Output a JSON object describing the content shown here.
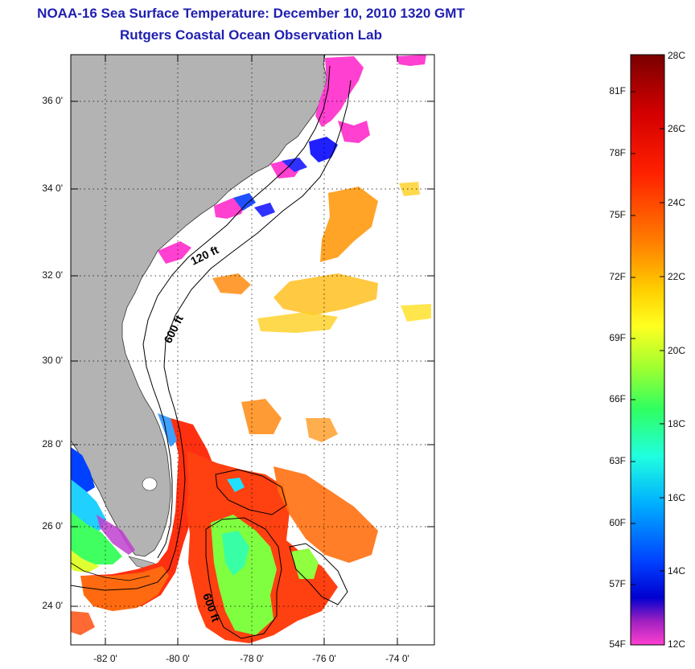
{
  "header": {
    "title": "NOAA-16 Sea Surface Temperature:  December 10, 2010 1320 GMT",
    "subtitle": "Rutgers Coastal Ocean Observation Lab"
  },
  "map": {
    "lat_labels": [
      "36 0'",
      "34 0'",
      "32 0'",
      "30 0'",
      "28 0'",
      "26 0'",
      "24 0'"
    ],
    "lon_labels": [
      "-82 0'",
      "-80 0'",
      "-78 0'",
      "-76 0'",
      "-74 0'"
    ],
    "isobath_labels": [
      "120 ft",
      "600 ft",
      "600 ft"
    ],
    "colors": {
      "land": "#b3b3b3",
      "ocean": "#ffffff",
      "grid": "#000000"
    }
  },
  "colorbar": {
    "fahrenheit_labels": [
      "81F",
      "78F",
      "75F",
      "72F",
      "69F",
      "66F",
      "63F",
      "60F",
      "57F",
      "54F"
    ],
    "celsius_labels": [
      "28C",
      "26C",
      "24C",
      "22C",
      "20C",
      "18C",
      "16C",
      "14C",
      "12C"
    ],
    "colors": [
      "#7a0000",
      "#d40000",
      "#ff2000",
      "#ff8000",
      "#ffd000",
      "#ffff20",
      "#a0ff30",
      "#30ff60",
      "#20ffe0",
      "#00b0ff",
      "#0040ff",
      "#0000d0",
      "#a020c0",
      "#ff40d0"
    ]
  }
}
